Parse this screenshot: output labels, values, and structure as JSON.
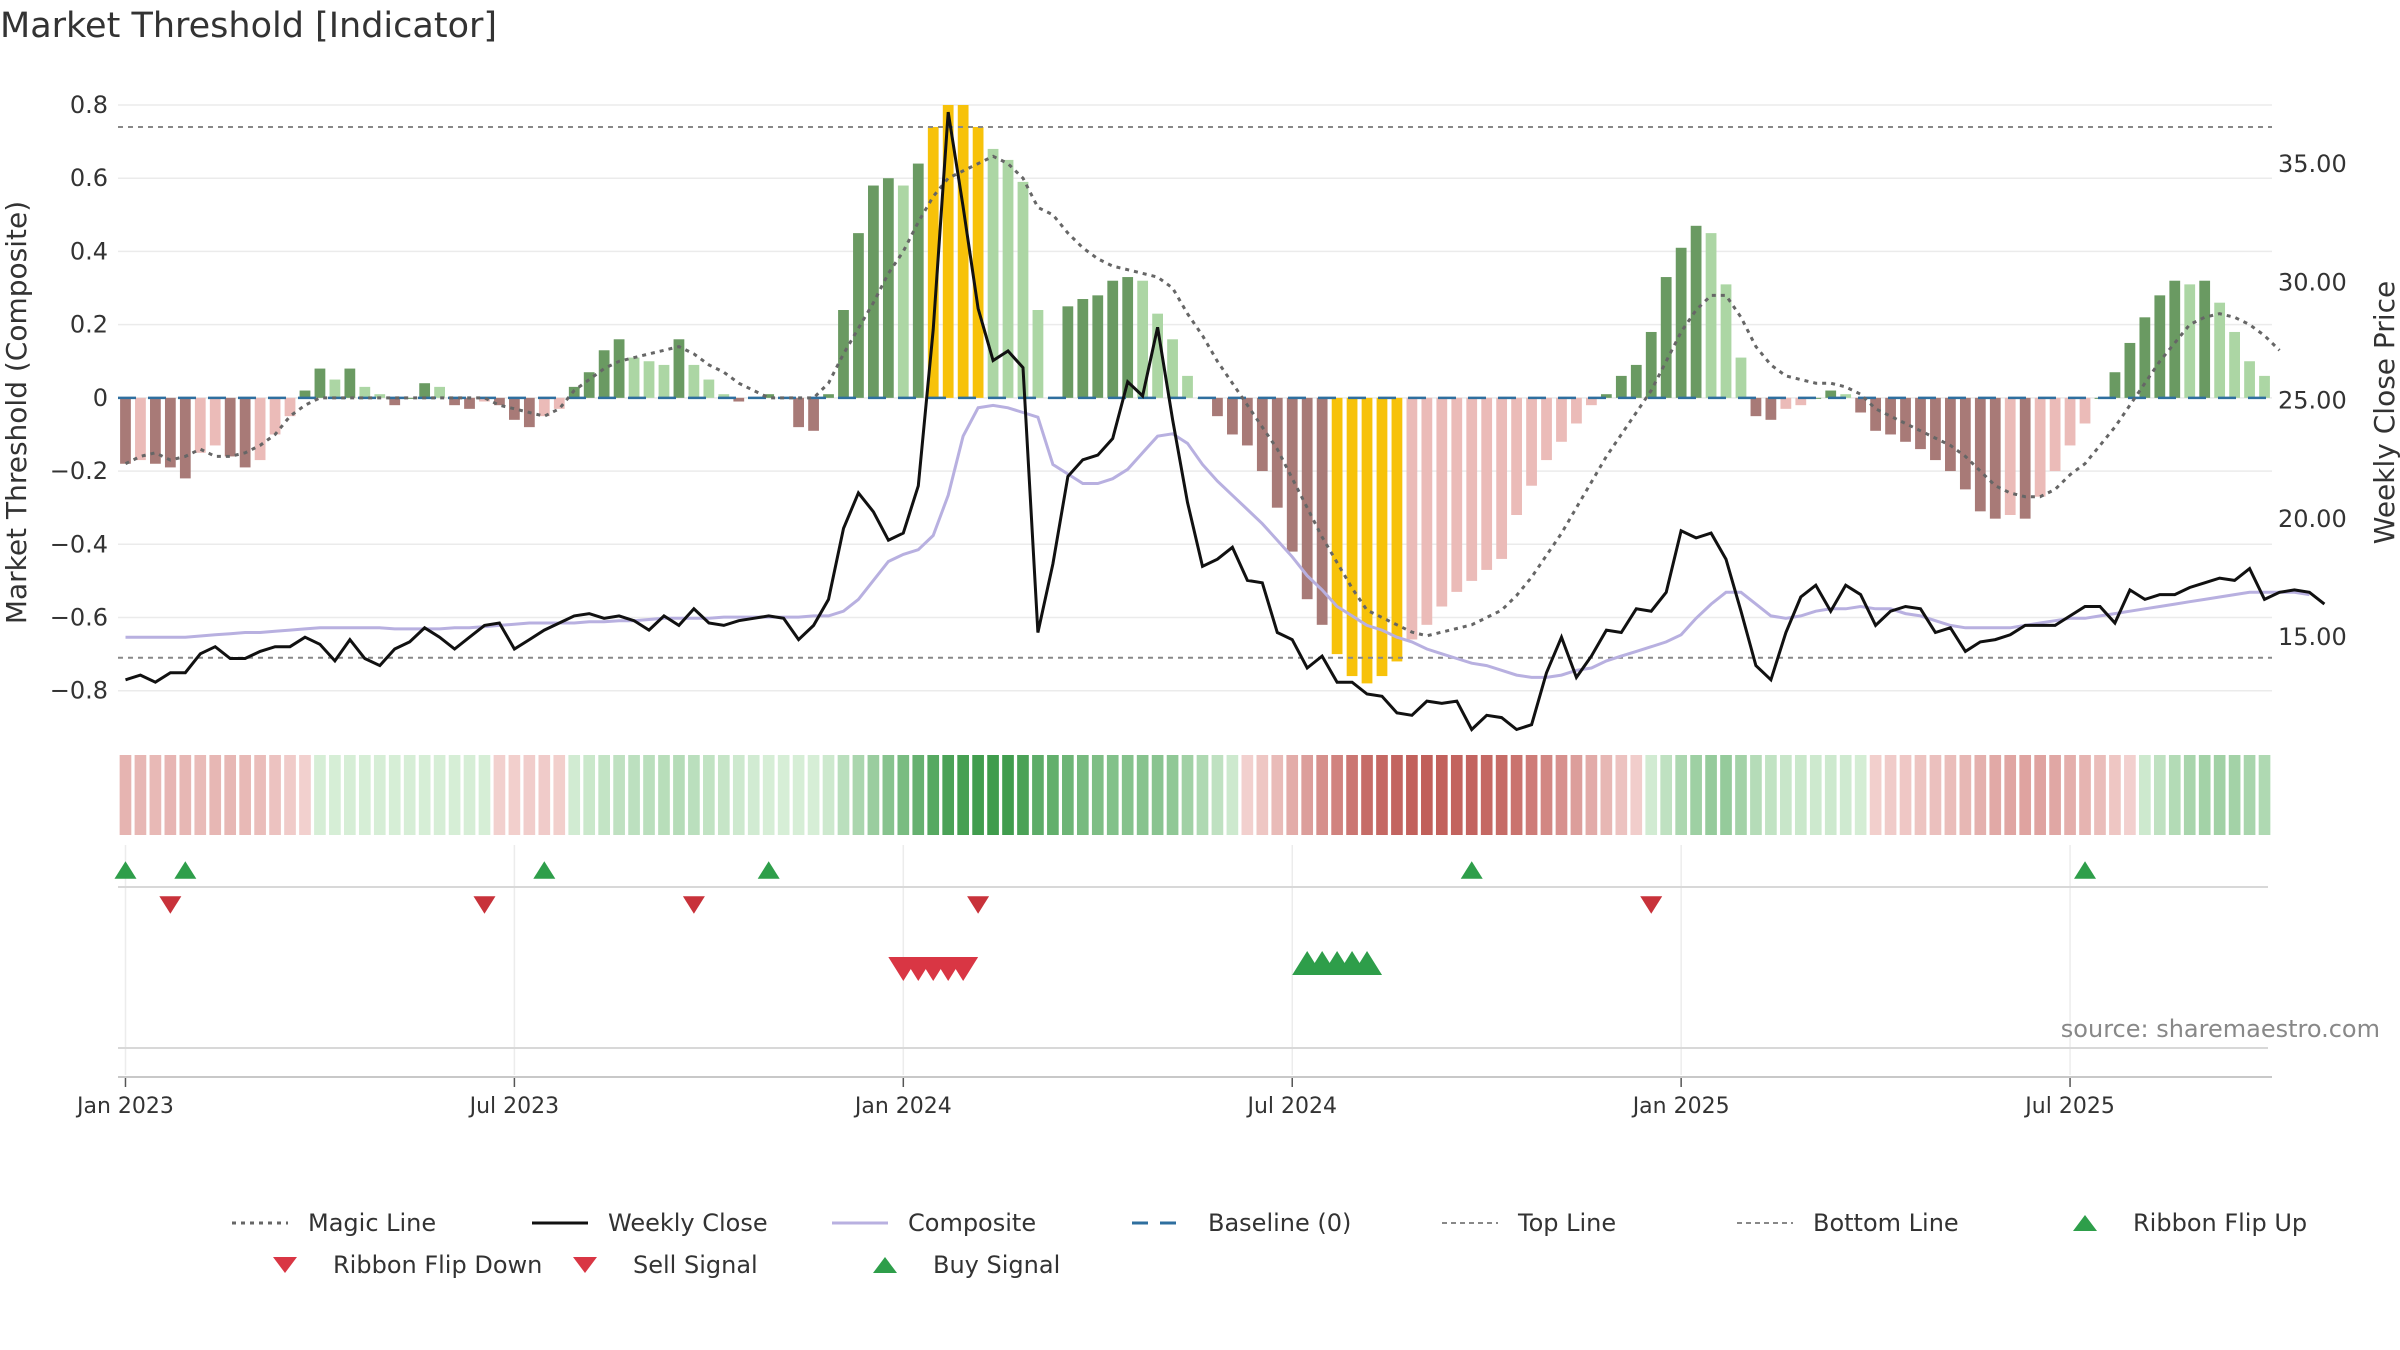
{
  "title": "Market Threshold [Indicator]",
  "source": "source: sharemaestro.com",
  "chart_data": {
    "type": "bar",
    "ylabel_left": "Market Threshold (Composite)",
    "ylabel_right": "Weekly Close Price",
    "ylim_left": [
      -0.88,
      0.8
    ],
    "ylim_right": [
      11.5,
      37.5
    ],
    "yticks_left": [
      "0.8",
      "0.6",
      "0.4",
      "0.2",
      "0",
      "−0.2",
      "−0.4",
      "−0.6",
      "−0.8"
    ],
    "yticks_right": [
      "35.00",
      "30.00",
      "25.00",
      "20.00",
      "15.00"
    ],
    "x_ticks": [
      "Jan 2023",
      "Jul 2023",
      "Jan 2024",
      "Jul 2024",
      "Jan 2025",
      "Jul 2025"
    ],
    "top_line": 0.74,
    "bottom_line": -0.71,
    "grid": true,
    "legend_placement": "bottom",
    "colors": {
      "strong_up": "#6a9a62",
      "weak_up": "#acd6a4",
      "strong_down": "#a87a77",
      "weak_down": "#ebbbb8",
      "extreme": "#f7c20a",
      "magic": "#666666",
      "close": "#111111",
      "composite": "#b8b0e0",
      "baseline": "#2f6f9f",
      "buy": "#2e9e4a",
      "sell": "#d93644"
    },
    "composite_bars": [
      -0.18,
      -0.17,
      -0.18,
      -0.19,
      -0.22,
      -0.15,
      -0.13,
      -0.16,
      -0.19,
      -0.17,
      -0.1,
      -0.05,
      0.02,
      0.08,
      0.05,
      0.08,
      0.03,
      0.01,
      -0.02,
      0.0,
      0.04,
      0.03,
      -0.02,
      -0.03,
      -0.01,
      -0.02,
      -0.06,
      -0.08,
      -0.05,
      -0.03,
      0.03,
      0.07,
      0.13,
      0.16,
      0.11,
      0.1,
      0.09,
      0.16,
      0.09,
      0.05,
      0.01,
      -0.01,
      0.0,
      0.01,
      0.0,
      -0.08,
      -0.09,
      0.01,
      0.24,
      0.45,
      0.58,
      0.6,
      0.58,
      0.64,
      0.74,
      0.8,
      0.8,
      0.74,
      0.68,
      0.65,
      0.59,
      0.24,
      0.0,
      0.25,
      0.27,
      0.28,
      0.32,
      0.33,
      0.32,
      0.23,
      0.16,
      0.06,
      0.0,
      -0.05,
      -0.1,
      -0.13,
      -0.2,
      -0.3,
      -0.42,
      -0.55,
      -0.62,
      -0.7,
      -0.76,
      -0.78,
      -0.76,
      -0.72,
      -0.66,
      -0.62,
      -0.57,
      -0.53,
      -0.5,
      -0.47,
      -0.44,
      -0.32,
      -0.24,
      -0.17,
      -0.12,
      -0.07,
      -0.02,
      0.01,
      0.06,
      0.09,
      0.18,
      0.33,
      0.41,
      0.47,
      0.45,
      0.31,
      0.11,
      -0.05,
      -0.06,
      -0.03,
      -0.02,
      0.0,
      0.02,
      0.01,
      -0.04,
      -0.09,
      -0.1,
      -0.12,
      -0.14,
      -0.17,
      -0.2,
      -0.25,
      -0.31,
      -0.33,
      -0.32,
      -0.33,
      -0.27,
      -0.2,
      -0.13,
      -0.07,
      0.0,
      0.07,
      0.15,
      0.22,
      0.28,
      0.32,
      0.31,
      0.32,
      0.26,
      0.18,
      0.1,
      0.06
    ],
    "magic_line": [
      -0.18,
      -0.16,
      -0.15,
      -0.17,
      -0.16,
      -0.14,
      -0.16,
      -0.16,
      -0.15,
      -0.13,
      -0.1,
      -0.05,
      -0.02,
      0.0,
      0.0,
      0.0,
      0.0,
      0.0,
      0.0,
      0.0,
      0.0,
      0.0,
      0.0,
      0.0,
      0.0,
      -0.02,
      -0.03,
      -0.04,
      -0.05,
      -0.03,
      0.02,
      0.05,
      0.08,
      0.1,
      0.11,
      0.12,
      0.13,
      0.14,
      0.12,
      0.09,
      0.07,
      0.04,
      0.02,
      0.0,
      0.0,
      0.0,
      0.0,
      0.04,
      0.12,
      0.19,
      0.26,
      0.34,
      0.4,
      0.48,
      0.55,
      0.6,
      0.62,
      0.64,
      0.66,
      0.64,
      0.6,
      0.52,
      0.5,
      0.45,
      0.41,
      0.38,
      0.36,
      0.35,
      0.34,
      0.33,
      0.3,
      0.23,
      0.17,
      0.1,
      0.04,
      -0.02,
      -0.08,
      -0.14,
      -0.22,
      -0.3,
      -0.38,
      -0.45,
      -0.52,
      -0.58,
      -0.6,
      -0.62,
      -0.64,
      -0.65,
      -0.64,
      -0.63,
      -0.62,
      -0.6,
      -0.58,
      -0.54,
      -0.49,
      -0.43,
      -0.37,
      -0.3,
      -0.23,
      -0.16,
      -0.1,
      -0.04,
      0.02,
      0.1,
      0.18,
      0.24,
      0.28,
      0.28,
      0.22,
      0.14,
      0.09,
      0.06,
      0.05,
      0.04,
      0.04,
      0.03,
      0.01,
      -0.03,
      -0.05,
      -0.07,
      -0.09,
      -0.11,
      -0.13,
      -0.16,
      -0.2,
      -0.24,
      -0.26,
      -0.27,
      -0.27,
      -0.25,
      -0.21,
      -0.18,
      -0.13,
      -0.08,
      -0.02,
      0.04,
      0.1,
      0.15,
      0.2,
      0.22,
      0.23,
      0.22,
      0.2,
      0.17,
      0.13
    ],
    "weekly_close": [
      13.2,
      13.4,
      13.1,
      13.5,
      13.5,
      14.3,
      14.6,
      14.1,
      14.1,
      14.4,
      14.6,
      14.6,
      15.0,
      14.7,
      14.0,
      14.9,
      14.1,
      13.8,
      14.5,
      14.8,
      15.4,
      15.0,
      14.5,
      15.0,
      15.5,
      15.6,
      14.5,
      14.9,
      15.3,
      15.6,
      15.9,
      16.0,
      15.8,
      15.9,
      15.7,
      15.3,
      15.9,
      15.5,
      16.2,
      15.6,
      15.5,
      15.7,
      15.8,
      15.9,
      15.8,
      14.9,
      15.5,
      16.6,
      19.6,
      21.1,
      20.3,
      19.1,
      19.4,
      21.4,
      28.0,
      37.2,
      33.2,
      28.9,
      26.7,
      27.1,
      26.4,
      15.2,
      18.1,
      21.8,
      22.5,
      22.7,
      23.4,
      25.8,
      25.2,
      28.1,
      24.2,
      20.7,
      18.0,
      18.3,
      18.8,
      17.4,
      17.3,
      15.2,
      14.9,
      13.7,
      14.2,
      13.1,
      13.1,
      12.6,
      12.5,
      11.8,
      11.7,
      12.3,
      12.2,
      12.3,
      11.1,
      11.7,
      11.6,
      11.1,
      11.3,
      13.5,
      15.0,
      13.3,
      14.2,
      15.3,
      15.2,
      16.2,
      16.1,
      16.9,
      19.5,
      19.2,
      19.4,
      18.3,
      16.1,
      13.8,
      13.2,
      15.2,
      16.7,
      17.2,
      16.1,
      17.2,
      16.8,
      15.5,
      16.1,
      16.3,
      16.2,
      15.2,
      15.4,
      14.4,
      14.8,
      14.9,
      15.1,
      15.5,
      15.5,
      15.5,
      15.9,
      16.3,
      16.3,
      15.6,
      17.0,
      16.6,
      16.8,
      16.8,
      17.1,
      17.3,
      17.5,
      17.4,
      17.9,
      16.6,
      16.9,
      17.0,
      16.9,
      16.4
    ],
    "composite_line": [
      15.0,
      15.0,
      15.0,
      15.0,
      15.0,
      15.05,
      15.1,
      15.15,
      15.2,
      15.2,
      15.25,
      15.3,
      15.35,
      15.4,
      15.4,
      15.4,
      15.4,
      15.4,
      15.35,
      15.35,
      15.35,
      15.35,
      15.4,
      15.4,
      15.45,
      15.5,
      15.55,
      15.6,
      15.6,
      15.6,
      15.6,
      15.65,
      15.65,
      15.7,
      15.7,
      15.75,
      15.8,
      15.8,
      15.8,
      15.8,
      15.85,
      15.85,
      15.85,
      15.85,
      15.85,
      15.85,
      15.9,
      15.9,
      16.1,
      16.6,
      17.4,
      18.2,
      18.5,
      18.7,
      19.3,
      21.0,
      23.5,
      24.7,
      24.8,
      24.7,
      24.5,
      24.3,
      22.3,
      21.9,
      21.5,
      21.5,
      21.7,
      22.1,
      22.8,
      23.5,
      23.6,
      23.2,
      22.3,
      21.6,
      21.0,
      20.4,
      19.8,
      19.1,
      18.4,
      17.6,
      17.0,
      16.3,
      15.9,
      15.5,
      15.3,
      15.0,
      14.8,
      14.5,
      14.3,
      14.1,
      13.9,
      13.8,
      13.6,
      13.4,
      13.3,
      13.3,
      13.4,
      13.6,
      13.7,
      14.0,
      14.2,
      14.4,
      14.6,
      14.8,
      15.1,
      15.8,
      16.4,
      16.9,
      16.9,
      16.4,
      15.9,
      15.8,
      15.9,
      16.1,
      16.2,
      16.2,
      16.3,
      16.2,
      16.2,
      16.0,
      15.9,
      15.7,
      15.5,
      15.4,
      15.4,
      15.4,
      15.4,
      15.5,
      15.6,
      15.7,
      15.8,
      15.8,
      15.9,
      16.0,
      16.1,
      16.2,
      16.3,
      16.4,
      16.5,
      16.6,
      16.7,
      16.8,
      16.9,
      16.9,
      16.9,
      16.9,
      16.8
    ],
    "ribbon_flip_up_weeks": [
      0,
      4,
      28,
      43,
      90,
      131
    ],
    "ribbon_flip_down_weeks": [
      3,
      24,
      38,
      57,
      102
    ],
    "sell_signal_weeks": [
      52,
      53,
      54,
      55,
      56
    ],
    "buy_signal_weeks": [
      79,
      80,
      81,
      82,
      83
    ]
  },
  "legend": [
    {
      "label": "Magic Line",
      "icon": "dotted-line"
    },
    {
      "label": "Weekly Close",
      "icon": "solid-line"
    },
    {
      "label": "Composite",
      "icon": "lavender-line"
    },
    {
      "label": "Baseline (0)",
      "icon": "dashed-line"
    },
    {
      "label": "Top Line",
      "icon": "thin-dotted-line"
    },
    {
      "label": "Bottom Line",
      "icon": "thin-dotted-line"
    },
    {
      "label": "Ribbon Flip Up",
      "icon": "triangle-up-icon"
    },
    {
      "label": "Ribbon Flip Down",
      "icon": "triangle-down-icon"
    },
    {
      "label": "Sell Signal",
      "icon": "triangle-down-icon"
    },
    {
      "label": "Buy Signal",
      "icon": "triangle-up-icon"
    }
  ]
}
